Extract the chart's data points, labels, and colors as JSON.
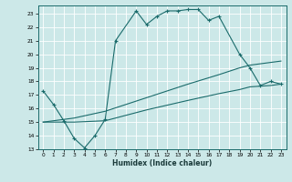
{
  "xlabel": "Humidex (Indice chaleur)",
  "bg_color": "#cce8e8",
  "grid_color": "#aad0d0",
  "line_color": "#1a6b6b",
  "xlim": [
    -0.5,
    23.5
  ],
  "ylim": [
    13,
    23.6
  ],
  "yticks": [
    13,
    14,
    15,
    16,
    17,
    18,
    19,
    20,
    21,
    22,
    23
  ],
  "xticks": [
    0,
    1,
    2,
    3,
    4,
    5,
    6,
    7,
    8,
    9,
    10,
    11,
    12,
    13,
    14,
    15,
    16,
    17,
    18,
    19,
    20,
    21,
    22,
    23
  ],
  "curve1_x": [
    0,
    1,
    2,
    3,
    4,
    5,
    6,
    7,
    9,
    10,
    11,
    12,
    13,
    14,
    15,
    16,
    17,
    19,
    20,
    21,
    22,
    23
  ],
  "curve1_y": [
    17.3,
    16.3,
    15.1,
    13.8,
    13.1,
    14.0,
    15.2,
    21.0,
    23.2,
    22.2,
    22.8,
    23.2,
    23.2,
    23.3,
    23.3,
    22.5,
    22.8,
    20.0,
    19.0,
    17.7,
    18.0,
    17.8
  ],
  "curve2_x": [
    0,
    3,
    6,
    10,
    14,
    17,
    19,
    20,
    21,
    22,
    23
  ],
  "curve2_y": [
    15.0,
    15.3,
    15.8,
    16.8,
    17.8,
    18.5,
    19.0,
    19.2,
    19.3,
    19.4,
    19.5
  ],
  "curve3_x": [
    0,
    3,
    6,
    10,
    14,
    17,
    19,
    20,
    21,
    22,
    23
  ],
  "curve3_y": [
    15.0,
    15.0,
    15.1,
    15.9,
    16.6,
    17.1,
    17.4,
    17.6,
    17.65,
    17.7,
    17.8
  ]
}
